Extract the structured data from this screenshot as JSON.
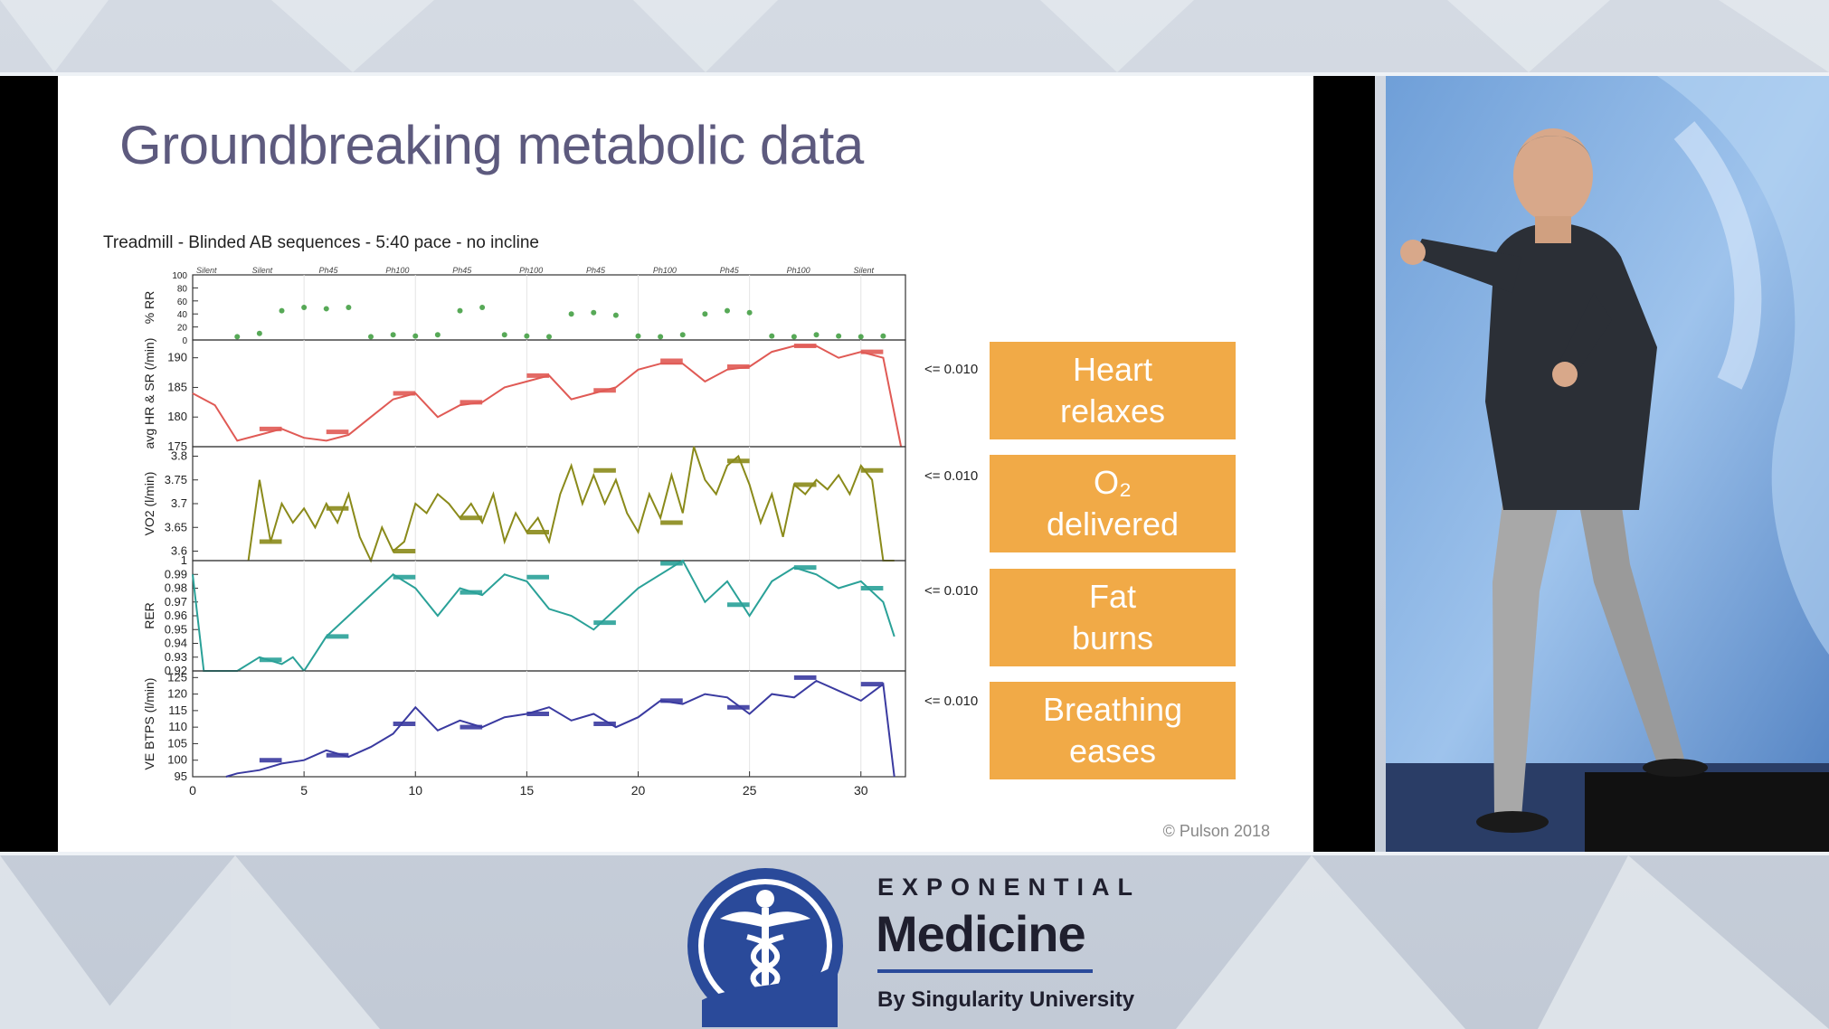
{
  "slide": {
    "title": "Groundbreaking metabolic data",
    "chart_subtitle": "Treadmill - Blinded AB sequences - 5:40 pace - no incline",
    "copyright": "© Pulson 2018"
  },
  "callouts": [
    {
      "lines": [
        "Heart",
        "relaxes"
      ],
      "pvalue": "<= 0.010"
    },
    {
      "lines": [
        "O₂",
        "delivered"
      ],
      "pvalue": "<= 0.010"
    },
    {
      "lines": [
        "Fat",
        "burns"
      ],
      "pvalue": "<= 0.010"
    },
    {
      "lines": [
        "Breathing",
        "eases"
      ],
      "pvalue": "<= 0.010"
    }
  ],
  "chart_data": [
    {
      "type": "scatter",
      "ylabel": "% RR",
      "yticks": [
        "0",
        "20",
        "40",
        "60",
        "80",
        "100"
      ],
      "ylim": [
        0,
        100
      ],
      "segment_labels": [
        "Silent",
        "Silent",
        "Ph45",
        "Ph100",
        "Ph45",
        "Ph100",
        "Ph45",
        "Ph100",
        "Ph45",
        "Ph100",
        "Silent"
      ],
      "x": [
        2,
        3,
        4,
        5,
        6,
        7,
        8,
        9,
        10,
        11,
        12,
        13,
        14,
        15,
        16,
        17,
        18,
        19,
        20,
        21,
        22,
        23,
        24,
        25,
        26,
        27,
        28,
        29,
        30,
        31
      ],
      "values": [
        5,
        10,
        45,
        50,
        48,
        50,
        5,
        8,
        6,
        8,
        45,
        50,
        8,
        6,
        5,
        40,
        42,
        38,
        6,
        5,
        8,
        40,
        45,
        42,
        6,
        5,
        8,
        6,
        5,
        6
      ],
      "color": "#3a9a3a"
    },
    {
      "type": "line",
      "ylabel": "avg HR & SR (/min)",
      "yticks": [
        "175",
        "180",
        "185",
        "190"
      ],
      "ylim": [
        175,
        193
      ],
      "x": [
        0,
        1,
        2,
        3,
        4,
        5,
        6,
        7,
        8,
        9,
        10,
        11,
        12,
        13,
        14,
        15,
        16,
        17,
        18,
        19,
        20,
        21,
        22,
        23,
        24,
        25,
        26,
        27,
        28,
        29,
        30,
        31,
        31.8
      ],
      "values": [
        184,
        182,
        176,
        177,
        178,
        176.5,
        176,
        177,
        180,
        183,
        184,
        180,
        182,
        182.5,
        185,
        186,
        187,
        183,
        184,
        185,
        188,
        189,
        189,
        186,
        188,
        188.5,
        191,
        192,
        192,
        190,
        191,
        190,
        175
      ],
      "color": "#e05a55",
      "segments": [
        {
          "x0": 3,
          "x1": 4,
          "y": 178
        },
        {
          "x0": 6,
          "x1": 7,
          "y": 177.5
        },
        {
          "x0": 9,
          "x1": 10,
          "y": 184
        },
        {
          "x0": 12,
          "x1": 13,
          "y": 182.5
        },
        {
          "x0": 15,
          "x1": 16,
          "y": 187
        },
        {
          "x0": 18,
          "x1": 19,
          "y": 184.5
        },
        {
          "x0": 21,
          "x1": 22,
          "y": 189.5
        },
        {
          "x0": 24,
          "x1": 25,
          "y": 188.5
        },
        {
          "x0": 27,
          "x1": 28,
          "y": 192
        },
        {
          "x0": 30,
          "x1": 31,
          "y": 191
        }
      ]
    },
    {
      "type": "line",
      "ylabel": "VO2 (l/min)",
      "yticks": [
        "3.6",
        "3.65",
        "3.7",
        "3.75",
        "3.8"
      ],
      "ylim": [
        3.58,
        3.82
      ],
      "x": [
        2.5,
        3,
        3.5,
        4,
        4.5,
        5,
        5.5,
        6,
        6.5,
        7,
        7.5,
        8,
        8.5,
        9,
        9.5,
        10,
        10.5,
        11,
        11.5,
        12,
        12.5,
        13,
        13.5,
        14,
        14.5,
        15,
        15.5,
        16,
        16.5,
        17,
        17.5,
        18,
        18.5,
        19,
        19.5,
        20,
        20.5,
        21,
        21.5,
        22,
        22.5,
        23,
        23.5,
        24,
        24.5,
        25,
        25.5,
        26,
        26.5,
        27,
        27.5,
        28,
        28.5,
        29,
        29.5,
        30,
        30.5,
        31,
        31.5
      ],
      "values": [
        3.58,
        3.75,
        3.62,
        3.7,
        3.66,
        3.69,
        3.65,
        3.7,
        3.66,
        3.72,
        3.63,
        3.58,
        3.65,
        3.6,
        3.62,
        3.7,
        3.68,
        3.72,
        3.7,
        3.67,
        3.7,
        3.66,
        3.72,
        3.62,
        3.68,
        3.64,
        3.67,
        3.62,
        3.72,
        3.78,
        3.7,
        3.76,
        3.7,
        3.75,
        3.68,
        3.64,
        3.72,
        3.67,
        3.76,
        3.68,
        3.82,
        3.75,
        3.72,
        3.78,
        3.8,
        3.74,
        3.66,
        3.72,
        3.63,
        3.74,
        3.72,
        3.75,
        3.73,
        3.76,
        3.72,
        3.78,
        3.75,
        3.58,
        3.58
      ],
      "color": "#8a8a1a",
      "segments": [
        {
          "x0": 3,
          "x1": 4,
          "y": 3.62
        },
        {
          "x0": 6,
          "x1": 7,
          "y": 3.69
        },
        {
          "x0": 9,
          "x1": 10,
          "y": 3.6
        },
        {
          "x0": 12,
          "x1": 13,
          "y": 3.67
        },
        {
          "x0": 15,
          "x1": 16,
          "y": 3.64
        },
        {
          "x0": 18,
          "x1": 19,
          "y": 3.77
        },
        {
          "x0": 21,
          "x1": 22,
          "y": 3.66
        },
        {
          "x0": 24,
          "x1": 25,
          "y": 3.79
        },
        {
          "x0": 27,
          "x1": 28,
          "y": 3.74
        },
        {
          "x0": 30,
          "x1": 31,
          "y": 3.77
        }
      ]
    },
    {
      "type": "line",
      "ylabel": "RER",
      "yticks": [
        "0.92",
        "0.93",
        "0.94",
        "0.95",
        "0.96",
        "0.97",
        "0.98",
        "0.99",
        "1"
      ],
      "ylim": [
        0.92,
        1.0
      ],
      "x": [
        0,
        0.5,
        2,
        3,
        4,
        4.5,
        5,
        6,
        7,
        8,
        9,
        10,
        11,
        12,
        13,
        14,
        15,
        16,
        17,
        18,
        19,
        20,
        21,
        22,
        23,
        24,
        25,
        26,
        27,
        28,
        29,
        30,
        31,
        31.5
      ],
      "values": [
        0.99,
        0.92,
        0.92,
        0.93,
        0.925,
        0.93,
        0.92,
        0.945,
        0.96,
        0.975,
        0.99,
        0.98,
        0.96,
        0.98,
        0.975,
        0.99,
        0.985,
        0.965,
        0.96,
        0.95,
        0.965,
        0.98,
        0.99,
        1.0,
        0.97,
        0.985,
        0.96,
        0.985,
        0.995,
        0.99,
        0.98,
        0.985,
        0.97,
        0.945
      ],
      "color": "#2aa198",
      "segments": [
        {
          "x0": 3,
          "x1": 4,
          "y": 0.928
        },
        {
          "x0": 6,
          "x1": 7,
          "y": 0.945
        },
        {
          "x0": 9,
          "x1": 10,
          "y": 0.988
        },
        {
          "x0": 12,
          "x1": 13,
          "y": 0.977
        },
        {
          "x0": 15,
          "x1": 16,
          "y": 0.988
        },
        {
          "x0": 18,
          "x1": 19,
          "y": 0.955
        },
        {
          "x0": 21,
          "x1": 22,
          "y": 0.998
        },
        {
          "x0": 24,
          "x1": 25,
          "y": 0.968
        },
        {
          "x0": 27,
          "x1": 28,
          "y": 0.995
        },
        {
          "x0": 30,
          "x1": 31,
          "y": 0.98
        }
      ]
    },
    {
      "type": "line",
      "ylabel": "VE BTPS (l/min)",
      "yticks": [
        "95",
        "100",
        "105",
        "110",
        "115",
        "120",
        "125"
      ],
      "ylim": [
        95,
        127
      ],
      "xticks": [
        "0",
        "5",
        "10",
        "15",
        "20",
        "25",
        "30"
      ],
      "xlim": [
        0,
        32
      ],
      "x": [
        1.5,
        2,
        3,
        4,
        5,
        6,
        7,
        8,
        9,
        10,
        11,
        12,
        13,
        14,
        15,
        16,
        17,
        18,
        19,
        20,
        21,
        22,
        23,
        24,
        25,
        26,
        27,
        28,
        29,
        30,
        31,
        31.5
      ],
      "values": [
        95,
        96,
        97,
        99,
        100,
        103,
        101,
        104,
        108,
        116,
        109,
        112,
        110,
        113,
        114,
        116,
        112,
        114,
        110,
        113,
        118,
        117,
        120,
        119,
        114,
        120,
        119,
        124,
        121,
        118,
        123,
        95
      ],
      "color": "#3a3aa0",
      "segments": [
        {
          "x0": 3,
          "x1": 4,
          "y": 100
        },
        {
          "x0": 6,
          "x1": 7,
          "y": 101.5
        },
        {
          "x0": 9,
          "x1": 10,
          "y": 111
        },
        {
          "x0": 12,
          "x1": 13,
          "y": 110
        },
        {
          "x0": 15,
          "x1": 16,
          "y": 114
        },
        {
          "x0": 18,
          "x1": 19,
          "y": 111
        },
        {
          "x0": 21,
          "x1": 22,
          "y": 118
        },
        {
          "x0": 24,
          "x1": 25,
          "y": 116
        },
        {
          "x0": 27,
          "x1": 28,
          "y": 125
        },
        {
          "x0": 30,
          "x1": 31,
          "y": 123
        }
      ]
    }
  ],
  "branding": {
    "line1": "EXPONENTIAL",
    "line2": "Medicine",
    "line3": "By Singularity University",
    "logo_icon": "caduceus-icon",
    "color": "#2a4a9a"
  }
}
